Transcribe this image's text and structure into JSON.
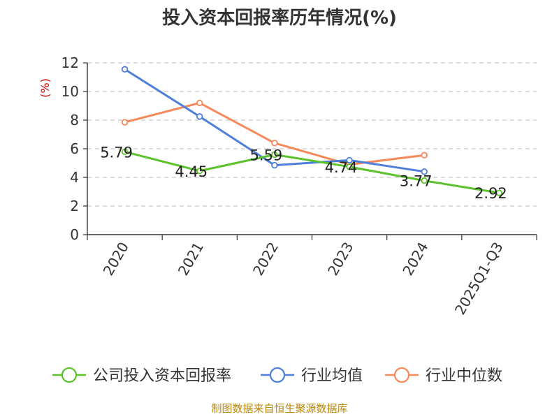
{
  "chart_data": {
    "type": "line",
    "title": "投入资本回报率历年情况(%)",
    "ylabel": "(%)",
    "xlabel": "",
    "categories": [
      "2020",
      "2021",
      "2022",
      "2023",
      "2024",
      "2025Q1-Q3"
    ],
    "ylim": [
      0,
      12
    ],
    "yticks": [
      0,
      2,
      4,
      6,
      8,
      10,
      12
    ],
    "grid": "horizontal dashed",
    "legend_position": "bottom",
    "series": [
      {
        "name": "公司投入资本回报率",
        "color": "#5cc22c",
        "values": [
          5.79,
          4.45,
          5.59,
          4.74,
          3.77,
          2.92
        ],
        "labels": [
          "5.79",
          "4.45",
          "5.59",
          "4.74",
          "3.77",
          "2.92"
        ]
      },
      {
        "name": "行业均值",
        "color": "#4e7fdb",
        "values": [
          11.55,
          8.25,
          4.85,
          5.2,
          4.4,
          null
        ]
      },
      {
        "name": "行业中位数",
        "color": "#f5895a",
        "values": [
          7.85,
          9.2,
          6.4,
          4.9,
          5.55,
          null
        ]
      }
    ],
    "source": "制图数据来自恒生聚源数据库"
  }
}
